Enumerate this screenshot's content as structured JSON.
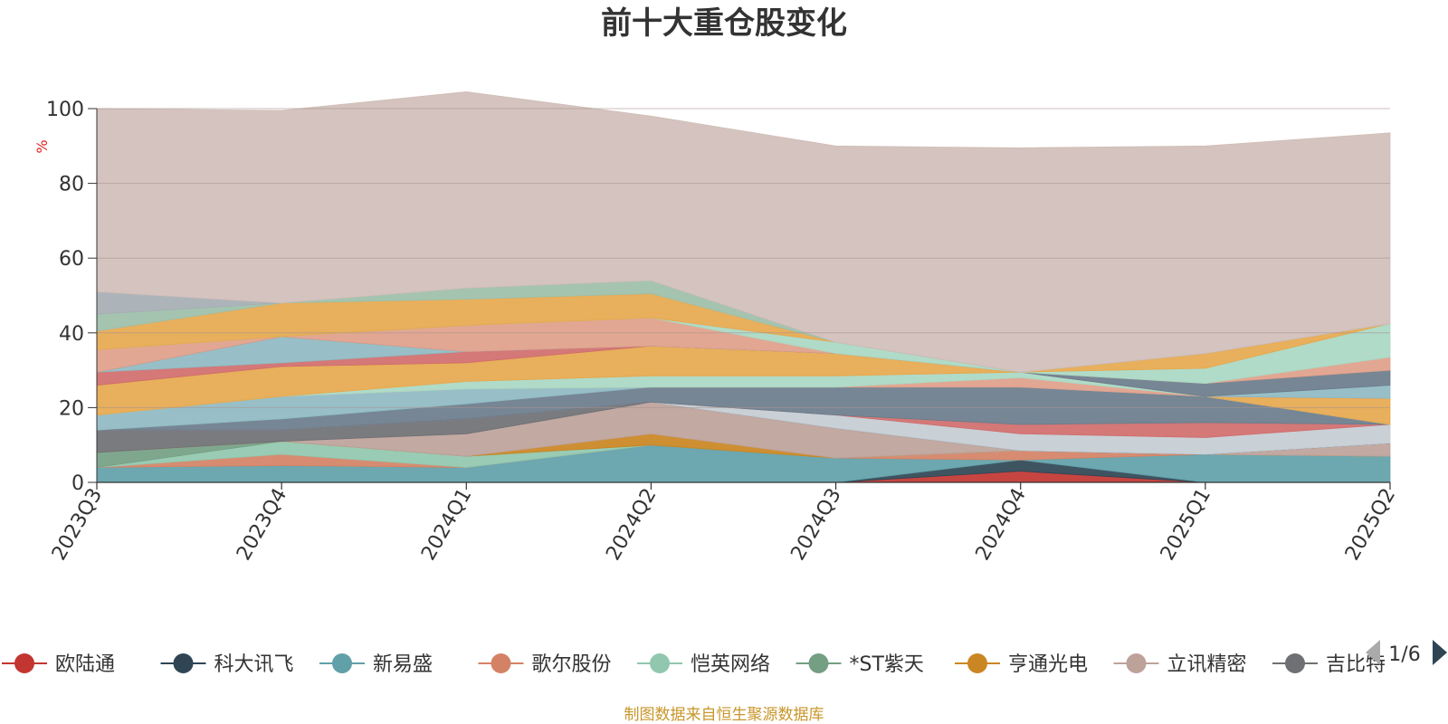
{
  "chart_data": {
    "type": "area",
    "stacked": true,
    "title": "前十大重仓股变化",
    "ylabel": "%",
    "ylim": [
      0,
      100
    ],
    "yticks": [
      0,
      20,
      40,
      60,
      80,
      100
    ],
    "grid": true,
    "legend_position": "bottom",
    "categories": [
      "2023Q3",
      "2023Q4",
      "2024Q1",
      "2024Q2",
      "2024Q3",
      "2024Q4",
      "2025Q1",
      "2025Q2"
    ],
    "series": [
      {
        "name": "欧陆通",
        "color": "#c23531",
        "values": [
          0,
          0,
          0,
          0,
          0,
          3,
          0,
          0
        ]
      },
      {
        "name": "科大讯飞",
        "color": "#2f4554",
        "values": [
          0,
          0,
          0,
          0,
          0,
          3,
          0,
          0
        ]
      },
      {
        "name": "新易盛",
        "color": "#61a0a8",
        "values": [
          4,
          4.5,
          4,
          10,
          6.5,
          0,
          7.5,
          7
        ]
      },
      {
        "name": "歌尔股份",
        "color": "#d48265",
        "values": [
          0,
          3,
          0,
          0,
          0,
          2.5,
          0,
          0
        ]
      },
      {
        "name": "恺英网络",
        "color": "#91c7ae",
        "values": [
          0,
          3.5,
          3,
          0,
          0,
          0,
          0,
          0
        ]
      },
      {
        "name": "*ST紫天",
        "color": "#749f83",
        "values": [
          4,
          0,
          0,
          0,
          0,
          0,
          0,
          0
        ]
      },
      {
        "name": "亨通光电",
        "color": "#ca8622",
        "values": [
          0,
          0,
          0,
          3,
          0,
          0,
          0,
          0
        ]
      },
      {
        "name": "立讯精密",
        "color": "#bda29a",
        "values": [
          0,
          0,
          6,
          8.5,
          8,
          0,
          0,
          3.5
        ]
      },
      {
        "name": "吉比特",
        "color": "#6e7074",
        "values": [
          6,
          3,
          4,
          0,
          0,
          0,
          0,
          0
        ]
      },
      {
        "name": "",
        "color": "#546570",
        "values": [
          0,
          0,
          0,
          0,
          0,
          0,
          0,
          0
        ]
      },
      {
        "name": "",
        "color": "#c4ccd3",
        "values": [
          0,
          0,
          0,
          0,
          3.5,
          4.5,
          4.5,
          5
        ]
      },
      {
        "name": "",
        "color": "#d06c6c",
        "values": [
          0,
          0,
          0,
          0,
          0,
          2.5,
          4,
          0
        ]
      },
      {
        "name": "",
        "color": "#6b7c8b",
        "values": [
          0,
          3,
          4,
          4,
          7.5,
          10,
          7,
          0
        ]
      },
      {
        "name": "",
        "color": "#8fbac2",
        "values": [
          4,
          6,
          4,
          0,
          0,
          0,
          0,
          0
        ]
      },
      {
        "name": "",
        "color": "#e0a08a",
        "values": [
          0,
          0,
          0,
          0,
          0,
          2.5,
          0,
          0
        ]
      },
      {
        "name": "",
        "color": "#a9d8c3",
        "values": [
          0,
          0,
          2,
          3,
          3,
          1.5,
          0,
          0
        ]
      },
      {
        "name": "",
        "color": "#e6a84e",
        "values": [
          8,
          8,
          5,
          8,
          6,
          0,
          0,
          7
        ]
      },
      {
        "name": "",
        "color": "#d06c6c",
        "values": [
          3.5,
          1,
          3,
          0,
          0,
          0,
          0,
          0
        ]
      },
      {
        "name": "",
        "color": "#8fbac2",
        "values": [
          0,
          7,
          0,
          0,
          0,
          0,
          0,
          3.5
        ]
      },
      {
        "name": "",
        "color": "#6b7c8b",
        "values": [
          0,
          0,
          0,
          0,
          0,
          0,
          3.5,
          4
        ]
      },
      {
        "name": "",
        "color": "#e0a08a",
        "values": [
          6,
          0,
          7,
          7.5,
          0,
          0,
          0,
          3.5
        ]
      },
      {
        "name": "",
        "color": "#a9d8c3",
        "values": [
          0,
          0,
          0,
          0,
          3,
          0,
          4,
          9
        ]
      },
      {
        "name": "",
        "color": "#e6a84e",
        "values": [
          5,
          9,
          7,
          6.5,
          0,
          0,
          4,
          0
        ]
      },
      {
        "name": "",
        "color": "#9dbfa9",
        "values": [
          4.5,
          0,
          3,
          3.5,
          0,
          0,
          0,
          0
        ]
      },
      {
        "name": "",
        "color": "#a6aeb3",
        "values": [
          6,
          0,
          0,
          0,
          0,
          0,
          0,
          0
        ]
      },
      {
        "name": "",
        "color": "#d0beb8",
        "values": [
          49,
          51.5,
          52.5,
          44,
          52.5,
          60,
          55.5,
          51
        ]
      }
    ]
  },
  "legend": {
    "page_label": "1/6"
  },
  "footer": {
    "source": "制图数据来自恒生聚源数据库"
  }
}
